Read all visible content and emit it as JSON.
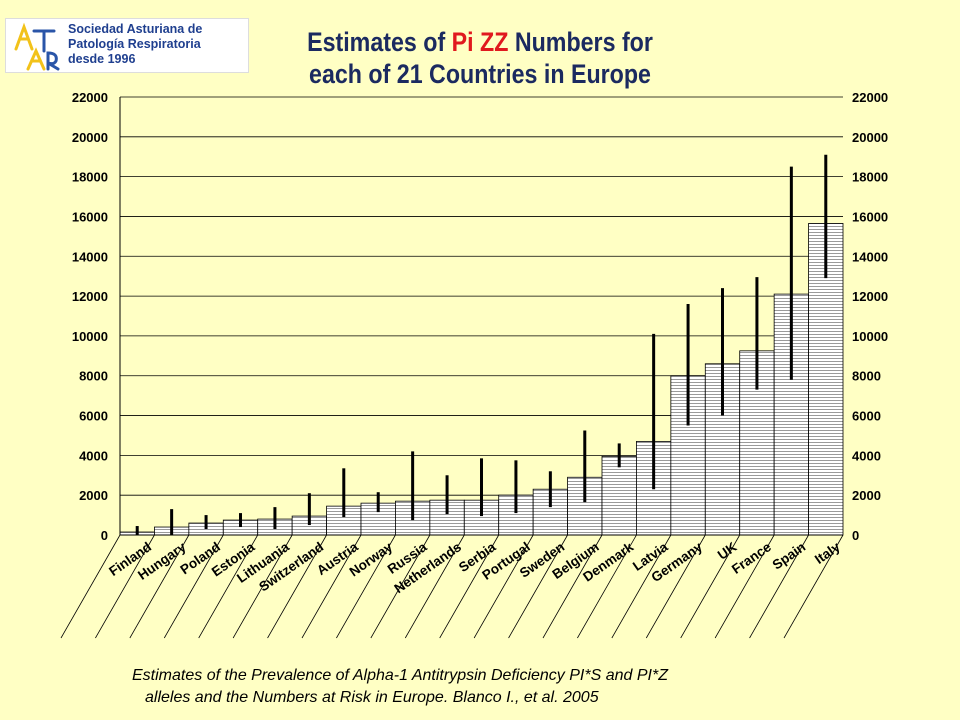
{
  "logo": {
    "mark_text": "ASTURPAR",
    "line1": "Sociedad Asturiana de",
    "line2": "Patología Respiratoria",
    "line3": "desde 1996",
    "colors": {
      "text": "#1F3F8F",
      "mark_yellow": "#F2C21A",
      "mark_blue": "#2A55A8"
    }
  },
  "title": {
    "part1": "Estimates of ",
    "highlight": "Pi ZZ",
    "part2": " Numbers for",
    "line2": "each of 21 Countries in Europe"
  },
  "caption": {
    "line1": "Estimates of the Prevalence of Alpha-1 Antitrypsin Deficiency PI*S and PI*Z",
    "line2": "alleles and the Numbers at Risk in Europe. Blanco I., et al. 2005"
  },
  "colors": {
    "background": "#FFFFC4",
    "bar_fill": "#FFFFFF",
    "bar_hatch": "#9A9A9A",
    "error_bar": "#000000",
    "title_color": "#1B2A60",
    "title_highlight": "#E0191E"
  },
  "chart_data": {
    "type": "bar",
    "categories": [
      "Finland",
      "Hungary",
      "Poland",
      "Estonia",
      "Lithuania",
      "Switzerland",
      "Austria",
      "Norway",
      "Russia",
      "Netherlands",
      "Serbia",
      "Portugal",
      "Sweden",
      "Belgium",
      "Denmark",
      "Latvia",
      "Germany",
      "UK",
      "France",
      "Spain",
      "Italy"
    ],
    "values": [
      150,
      400,
      600,
      750,
      800,
      950,
      1450,
      1600,
      1700,
      1750,
      1750,
      2000,
      2300,
      2900,
      3950,
      4700,
      8000,
      8600,
      9250,
      12100,
      15650
    ],
    "error_low": [
      0,
      0,
      300,
      400,
      300,
      500,
      900,
      1150,
      750,
      1050,
      950,
      1100,
      1400,
      1650,
      3400,
      2300,
      5500,
      6000,
      7300,
      7800,
      12900
    ],
    "error_high": [
      450,
      1300,
      1000,
      1100,
      1400,
      2100,
      3350,
      2150,
      4200,
      3000,
      3850,
      3750,
      3200,
      5250,
      4600,
      10100,
      11600,
      12400,
      12950,
      18500,
      19100
    ],
    "ylim": [
      0,
      22000
    ],
    "yticks": [
      0,
      2000,
      4000,
      6000,
      8000,
      10000,
      12000,
      14000,
      16000,
      18000,
      20000,
      22000
    ],
    "grid": true,
    "legend": "none",
    "title": "Estimates of Pi ZZ Numbers for each of 21 Countries in Europe",
    "xlabel": "",
    "ylabel": ""
  }
}
